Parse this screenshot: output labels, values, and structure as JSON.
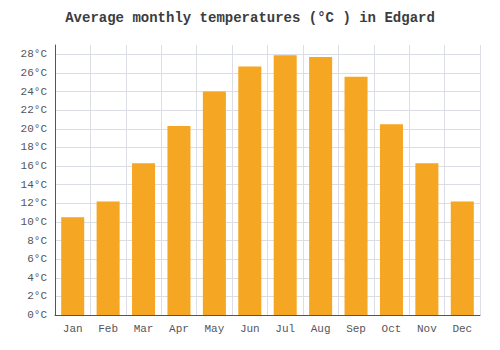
{
  "chart_data": {
    "type": "bar",
    "title": "Average monthly temperatures (°C ) in Edgard",
    "categories": [
      "Jan",
      "Feb",
      "Mar",
      "Apr",
      "May",
      "Jun",
      "Jul",
      "Aug",
      "Sep",
      "Oct",
      "Nov",
      "Dec"
    ],
    "values": [
      10.5,
      12.2,
      16.3,
      20.3,
      24.0,
      26.7,
      27.9,
      27.7,
      25.6,
      20.5,
      16.3,
      12.2
    ],
    "color": "#F5A623",
    "ylim": [
      0,
      29
    ],
    "yticks": [
      {
        "value": 0,
        "label": "0°C"
      },
      {
        "value": 2,
        "label": "2°C"
      },
      {
        "value": 4,
        "label": "4°C"
      },
      {
        "value": 6,
        "label": "6°C"
      },
      {
        "value": 8,
        "label": "8°C"
      },
      {
        "value": 10,
        "label": "10°C"
      },
      {
        "value": 12,
        "label": "12°C"
      },
      {
        "value": 14,
        "label": "14°C"
      },
      {
        "value": 16,
        "label": "16°C"
      },
      {
        "value": 18,
        "label": "18°C"
      },
      {
        "value": 20,
        "label": "20°C"
      },
      {
        "value": 22,
        "label": "22°C"
      },
      {
        "value": 24,
        "label": "24°C"
      },
      {
        "value": 26,
        "label": "26°C"
      },
      {
        "value": 28,
        "label": "28°C"
      }
    ],
    "grid": true
  }
}
